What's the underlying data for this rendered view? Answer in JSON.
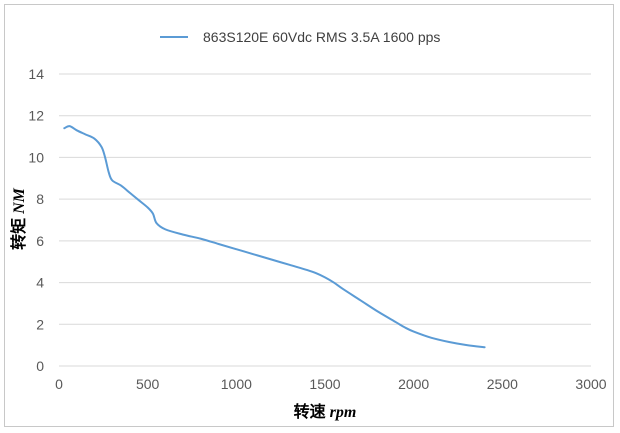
{
  "chart_data": {
    "type": "line",
    "title": "",
    "xlabel": "转速 rpm",
    "ylabel": "转矩 NM",
    "xlabel_parts": {
      "cjk": "转速",
      "unit": "rpm"
    },
    "ylabel_parts": {
      "cjk": "转矩",
      "unit": "NM"
    },
    "xlim": [
      0,
      3000
    ],
    "ylim": [
      0,
      14
    ],
    "x_ticks": [
      "0",
      "500",
      "1000",
      "1500",
      "2000",
      "2500",
      "3000"
    ],
    "y_ticks": [
      "0",
      "2",
      "4",
      "6",
      "8",
      "10",
      "12",
      "14"
    ],
    "grid": "horizontal",
    "legend_position": "top",
    "series": [
      {
        "name": "863S120E 60Vdc RMS 3.5A 1600 pps",
        "color": "#5b9bd5",
        "points": [
          [
            30,
            11.4
          ],
          [
            60,
            11.5
          ],
          [
            100,
            11.3
          ],
          [
            150,
            11.1
          ],
          [
            200,
            10.9
          ],
          [
            240,
            10.5
          ],
          [
            260,
            10.0
          ],
          [
            280,
            9.3
          ],
          [
            300,
            8.9
          ],
          [
            350,
            8.65
          ],
          [
            400,
            8.3
          ],
          [
            450,
            7.95
          ],
          [
            500,
            7.6
          ],
          [
            530,
            7.3
          ],
          [
            550,
            6.85
          ],
          [
            600,
            6.55
          ],
          [
            700,
            6.3
          ],
          [
            800,
            6.1
          ],
          [
            900,
            5.85
          ],
          [
            1000,
            5.6
          ],
          [
            1100,
            5.35
          ],
          [
            1200,
            5.1
          ],
          [
            1300,
            4.85
          ],
          [
            1400,
            4.6
          ],
          [
            1450,
            4.45
          ],
          [
            1500,
            4.25
          ],
          [
            1550,
            4.0
          ],
          [
            1600,
            3.7
          ],
          [
            1700,
            3.15
          ],
          [
            1800,
            2.6
          ],
          [
            1900,
            2.1
          ],
          [
            1950,
            1.85
          ],
          [
            2000,
            1.65
          ],
          [
            2100,
            1.35
          ],
          [
            2200,
            1.15
          ],
          [
            2300,
            1.0
          ],
          [
            2400,
            0.9
          ]
        ]
      }
    ]
  }
}
